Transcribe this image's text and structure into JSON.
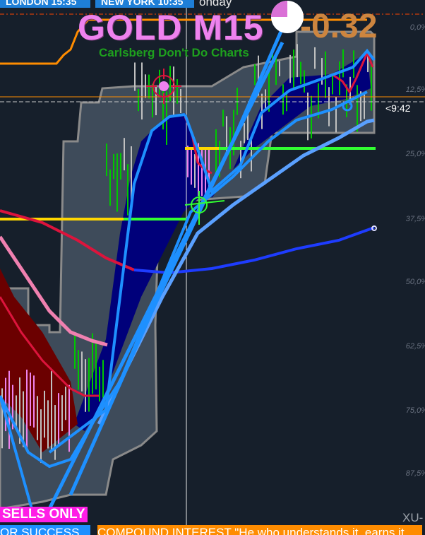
{
  "header": {
    "sessions": [
      {
        "label": "LONDON  15:35"
      },
      {
        "label": "NEW YORK  10:35"
      }
    ],
    "day": "onday",
    "symbol_title": "GOLD M15",
    "change": "-0.32",
    "subtitle": "Carlsberg Don't Do Charts"
  },
  "price_axis": {
    "levels": [
      "0,0%",
      "12,5%",
      "25,0%",
      "37,5%",
      "50,0%",
      "62,5%",
      "75,0%",
      "87,5%"
    ],
    "bar_timer": "<9:42"
  },
  "signals": {
    "sells_only": "SELLS ONLY"
  },
  "ticker": {
    "left_text": "OR SUCCESS",
    "right_text": "COMPOUND INTEREST \"He who understands it, earns it"
  },
  "corner_label": "XU-",
  "colors": {
    "background": "#161f2b",
    "envelope": "#3e4b5a",
    "cloud": "#00007a",
    "bull_bar": "#00c800",
    "bear_bar": "#c0c0c0",
    "ma_fast": "#1e90ff",
    "ma_slow": "#dc143c",
    "ma_pink": "#f080b0",
    "title": "#ee82ee",
    "change": "#cd853f"
  }
}
